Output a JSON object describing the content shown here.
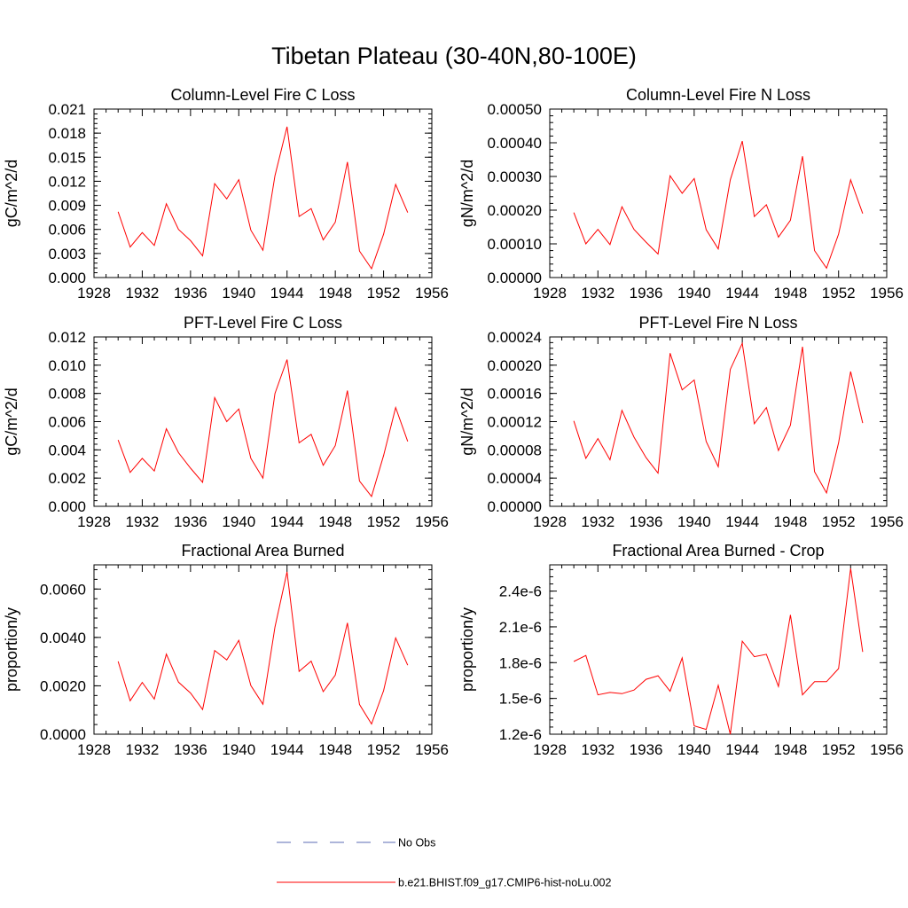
{
  "title": "Tibetan Plateau (30-40N,80-100E)",
  "colors": {
    "model": "#ff0000",
    "obs": "#5b6bb5",
    "axes": "#000000"
  },
  "legend": {
    "obs_label": "No Obs",
    "model_label": "b.e21.BHIST.f09_g17.CMIP6-hist-noLu.002"
  },
  "chart_data": [
    {
      "type": "line",
      "title": "Column-Level Fire C Loss",
      "ylabel": "gC/m^2/d",
      "xlim": [
        1928,
        1956
      ],
      "xticks": [
        1928,
        1932,
        1936,
        1940,
        1944,
        1948,
        1952,
        1956
      ],
      "ylim": [
        0,
        0.021
      ],
      "yticks": [
        "0.000",
        "0.003",
        "0.006",
        "0.009",
        "0.012",
        "0.015",
        "0.018",
        "0.021"
      ],
      "x": [
        1930,
        1931,
        1932,
        1933,
        1934,
        1935,
        1936,
        1937,
        1938,
        1939,
        1940,
        1941,
        1942,
        1943,
        1944,
        1945,
        1946,
        1947,
        1948,
        1949,
        1950,
        1951,
        1952,
        1953,
        1954
      ],
      "series": [
        {
          "name": "b.e21.BHIST.f09_g17.CMIP6-hist-noLu.002",
          "values": [
            0.0082,
            0.0038,
            0.0056,
            0.004,
            0.0092,
            0.006,
            0.0046,
            0.0027,
            0.0117,
            0.0098,
            0.0122,
            0.0059,
            0.0034,
            0.0127,
            0.0188,
            0.0076,
            0.0086,
            0.0047,
            0.0069,
            0.0144,
            0.0033,
            0.0011,
            0.0054,
            0.0116,
            0.0081
          ]
        }
      ]
    },
    {
      "type": "line",
      "title": "Column-Level Fire N Loss",
      "ylabel": "gN/m^2/d",
      "xlim": [
        1928,
        1956
      ],
      "xticks": [
        1928,
        1932,
        1936,
        1940,
        1944,
        1948,
        1952,
        1956
      ],
      "ylim": [
        0,
        0.0005
      ],
      "yticks": [
        "0.00000",
        "0.00010",
        "0.00020",
        "0.00030",
        "0.00040",
        "0.00050"
      ],
      "x": [
        1930,
        1931,
        1932,
        1933,
        1934,
        1935,
        1936,
        1937,
        1938,
        1939,
        1940,
        1941,
        1942,
        1943,
        1944,
        1945,
        1946,
        1947,
        1948,
        1949,
        1950,
        1951,
        1952,
        1953,
        1954
      ],
      "series": [
        {
          "name": "b.e21.BHIST.f09_g17.CMIP6-hist-noLu.002",
          "values": [
            0.000193,
            0.0001,
            0.000143,
            9.8e-05,
            0.00021,
            0.000143,
            0.000105,
            7e-05,
            0.000302,
            0.00025,
            0.000294,
            0.000142,
            8.5e-05,
            0.00029,
            0.000405,
            0.000181,
            0.000216,
            0.00012,
            0.00017,
            0.00036,
            8e-05,
            2.8e-05,
            0.000129,
            0.00029,
            0.00019
          ]
        }
      ]
    },
    {
      "type": "line",
      "title": "PFT-Level Fire C Loss",
      "ylabel": "gC/m^2/d",
      "xlim": [
        1928,
        1956
      ],
      "xticks": [
        1928,
        1932,
        1936,
        1940,
        1944,
        1948,
        1952,
        1956
      ],
      "ylim": [
        0,
        0.012
      ],
      "yticks": [
        "0.000",
        "0.002",
        "0.004",
        "0.006",
        "0.008",
        "0.010",
        "0.012"
      ],
      "x": [
        1930,
        1931,
        1932,
        1933,
        1934,
        1935,
        1936,
        1937,
        1938,
        1939,
        1940,
        1941,
        1942,
        1943,
        1944,
        1945,
        1946,
        1947,
        1948,
        1949,
        1950,
        1951,
        1952,
        1953,
        1954
      ],
      "series": [
        {
          "name": "b.e21.BHIST.f09_g17.CMIP6-hist-noLu.002",
          "values": [
            0.0047,
            0.0024,
            0.0034,
            0.0025,
            0.0055,
            0.0038,
            0.0027,
            0.0017,
            0.0077,
            0.006,
            0.0069,
            0.0034,
            0.002,
            0.008,
            0.0104,
            0.0045,
            0.0051,
            0.0029,
            0.0043,
            0.0082,
            0.0018,
            0.0007,
            0.0036,
            0.007,
            0.0046
          ]
        }
      ]
    },
    {
      "type": "line",
      "title": "PFT-Level Fire N Loss",
      "ylabel": "gN/m^2/d",
      "xlim": [
        1928,
        1956
      ],
      "xticks": [
        1928,
        1932,
        1936,
        1940,
        1944,
        1948,
        1952,
        1956
      ],
      "ylim": [
        0,
        0.00024
      ],
      "yticks": [
        "0.00000",
        "0.00004",
        "0.00008",
        "0.00012",
        "0.00016",
        "0.00020",
        "0.00024"
      ],
      "x": [
        1930,
        1931,
        1932,
        1933,
        1934,
        1935,
        1936,
        1937,
        1938,
        1939,
        1940,
        1941,
        1942,
        1943,
        1944,
        1945,
        1946,
        1947,
        1948,
        1949,
        1950,
        1951,
        1952,
        1953,
        1954
      ],
      "series": [
        {
          "name": "b.e21.BHIST.f09_g17.CMIP6-hist-noLu.002",
          "values": [
            0.000121,
            6.8e-05,
            9.6e-05,
            6.6e-05,
            0.000136,
            9.8e-05,
            6.9e-05,
            4.7e-05,
            0.000217,
            0.000165,
            0.000179,
            9.2e-05,
            5.6e-05,
            0.000194,
            0.000231,
            0.000117,
            0.00014,
            7.9e-05,
            0.000115,
            0.000226,
            4.9e-05,
            1.9e-05,
            9e-05,
            0.000191,
            0.000118
          ]
        }
      ]
    },
    {
      "type": "line",
      "title": "Fractional Area Burned",
      "ylabel": "proportion/y",
      "xlim": [
        1928,
        1956
      ],
      "xticks": [
        1928,
        1932,
        1936,
        1940,
        1944,
        1948,
        1952,
        1956
      ],
      "ylim": [
        0,
        0.007
      ],
      "yticks": [
        "0.0000",
        "0.0020",
        "0.0040",
        "0.0060"
      ],
      "ytick_values": [
        0,
        0.002,
        0.004,
        0.006
      ],
      "x": [
        1930,
        1931,
        1932,
        1933,
        1934,
        1935,
        1936,
        1937,
        1938,
        1939,
        1940,
        1941,
        1942,
        1943,
        1944,
        1945,
        1946,
        1947,
        1948,
        1949,
        1950,
        1951,
        1952,
        1953,
        1954
      ],
      "series": [
        {
          "name": "b.e21.BHIST.f09_g17.CMIP6-hist-noLu.002",
          "values": [
            0.00301,
            0.00138,
            0.00214,
            0.00145,
            0.00331,
            0.00215,
            0.0017,
            0.00102,
            0.00346,
            0.00307,
            0.00388,
            0.00201,
            0.00124,
            0.00443,
            0.00671,
            0.0026,
            0.00302,
            0.00176,
            0.00244,
            0.0046,
            0.00123,
            0.00042,
            0.0018,
            0.00398,
            0.00285
          ]
        }
      ]
    },
    {
      "type": "line",
      "title": "Fractional Area Burned - Crop",
      "ylabel": "proportion/y",
      "xlim": [
        1928,
        1956
      ],
      "xticks": [
        1928,
        1932,
        1936,
        1940,
        1944,
        1948,
        1952,
        1956
      ],
      "ylim": [
        1.2e-06,
        2.62e-06
      ],
      "yticks": [
        "1.2e-6",
        "1.5e-6",
        "1.8e-6",
        "2.1e-6",
        "2.4e-6"
      ],
      "ytick_values": [
        1.2e-06,
        1.5e-06,
        1.8e-06,
        2.1e-06,
        2.4e-06
      ],
      "x": [
        1930,
        1931,
        1932,
        1933,
        1934,
        1935,
        1936,
        1937,
        1938,
        1939,
        1940,
        1941,
        1942,
        1943,
        1944,
        1945,
        1946,
        1947,
        1948,
        1949,
        1950,
        1951,
        1952,
        1953,
        1954
      ],
      "series": [
        {
          "name": "b.e21.BHIST.f09_g17.CMIP6-hist-noLu.002",
          "values": [
            1.81e-06,
            1.86e-06,
            1.53e-06,
            1.55e-06,
            1.54e-06,
            1.57e-06,
            1.66e-06,
            1.69e-06,
            1.56e-06,
            1.84e-06,
            1.27e-06,
            1.24e-06,
            1.61e-06,
            1.2e-06,
            1.98e-06,
            1.85e-06,
            1.87e-06,
            1.6e-06,
            2.2e-06,
            1.53e-06,
            1.64e-06,
            1.64e-06,
            1.75e-06,
            2.59e-06,
            1.89e-06
          ]
        }
      ]
    }
  ]
}
